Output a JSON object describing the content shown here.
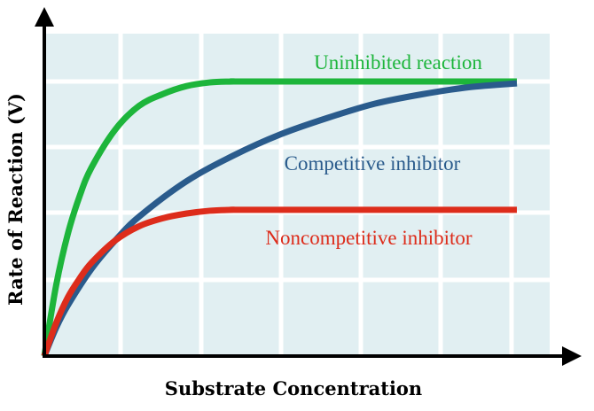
{
  "chart_data": {
    "type": "line",
    "xlabel": "Substrate Concentration",
    "ylabel": "Rate of Reaction (V)",
    "xlim": [
      0,
      10
    ],
    "ylim": [
      0,
      6
    ],
    "grid": true,
    "grid_color": "#ffffff",
    "plot_background": "#e1eff2",
    "axis_color": "#000000",
    "tick_labels": "none",
    "legend": "inline labels next to curves",
    "series": [
      {
        "name": "Uninhibited reaction",
        "color": "#1db53b",
        "x": [
          0,
          0.25,
          0.5,
          0.75,
          1,
          1.5,
          2,
          2.5,
          3,
          3.5,
          4,
          4.5,
          10
        ],
        "y": [
          0,
          1.5,
          2.6,
          3.4,
          4.0,
          4.8,
          5.3,
          5.55,
          5.72,
          5.8,
          5.82,
          5.82,
          5.82
        ]
      },
      {
        "name": "Competitive inhibitor",
        "color": "#2a5b8c",
        "x": [
          0,
          0.25,
          0.5,
          1,
          1.5,
          2,
          3,
          4,
          5,
          6,
          7,
          8,
          9,
          10
        ],
        "y": [
          0,
          0.6,
          1.08,
          1.85,
          2.45,
          2.95,
          3.7,
          4.25,
          4.7,
          5.05,
          5.35,
          5.55,
          5.7,
          5.78
        ]
      },
      {
        "name": "Noncompetitive inhibitor",
        "color": "#dd2c1b",
        "x": [
          0,
          0.25,
          0.5,
          0.75,
          1,
          1.5,
          2,
          2.5,
          3,
          3.5,
          4,
          4.5,
          10
        ],
        "y": [
          0,
          0.7,
          1.25,
          1.65,
          1.98,
          2.45,
          2.75,
          2.92,
          3.02,
          3.08,
          3.1,
          3.1,
          3.1
        ]
      }
    ]
  }
}
